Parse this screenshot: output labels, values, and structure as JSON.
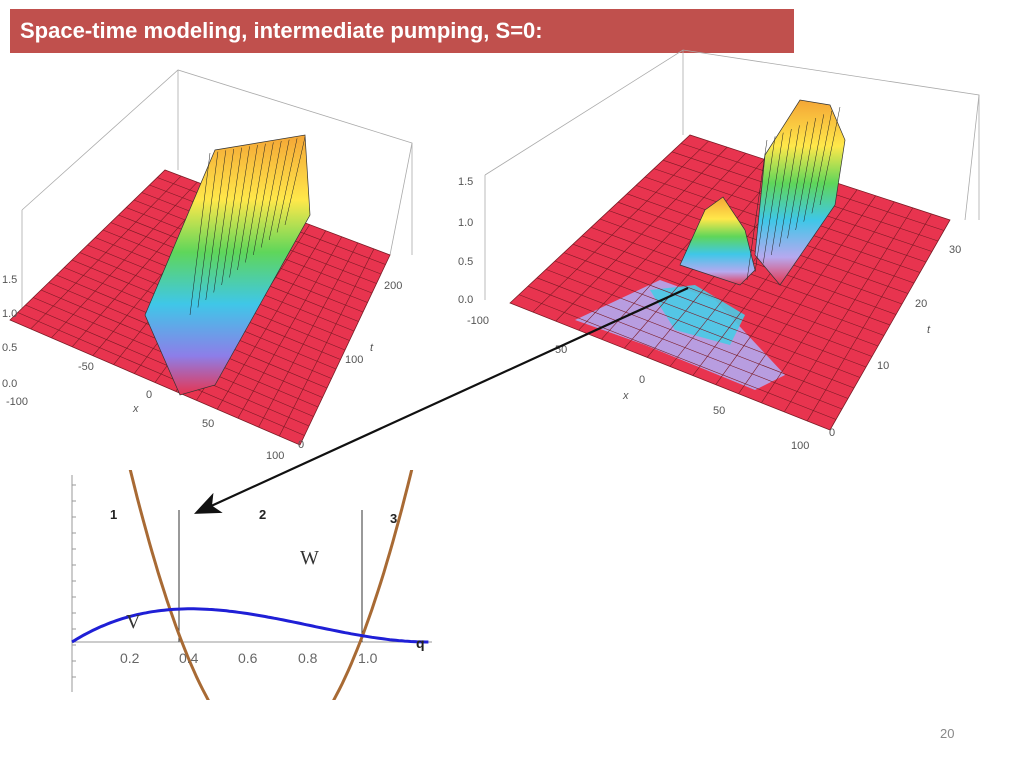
{
  "slide": {
    "title": "Space-time modeling, intermediate pumping, S=0:",
    "page_number": "20"
  },
  "plot_left": {
    "z_ticks": [
      "1.5",
      "1.0",
      "0.5",
      "0.0"
    ],
    "x_ticks": [
      "-100",
      "-50",
      "0",
      "50",
      "100"
    ],
    "t_ticks": [
      "0",
      "100",
      "200"
    ],
    "x_label": "x",
    "t_label": "t"
  },
  "plot_right": {
    "z_ticks": [
      "1.5",
      "1.0",
      "0.5",
      "0.0"
    ],
    "x_ticks": [
      "-100",
      "50",
      "0",
      "50",
      "100"
    ],
    "t_ticks": [
      "0",
      "10",
      "20",
      "30"
    ],
    "x_label": "x",
    "t_label": "t"
  },
  "curve_plot": {
    "x_ticks": [
      "0.2",
      "0.4",
      "0.6",
      "0.8",
      "1.0"
    ],
    "axis_label": "q",
    "region_labels": [
      "1",
      "2",
      "3"
    ],
    "curve_labels": [
      "W",
      "V"
    ],
    "colors": {
      "W": "#1f1fd6",
      "V": "#a86a34"
    }
  }
}
